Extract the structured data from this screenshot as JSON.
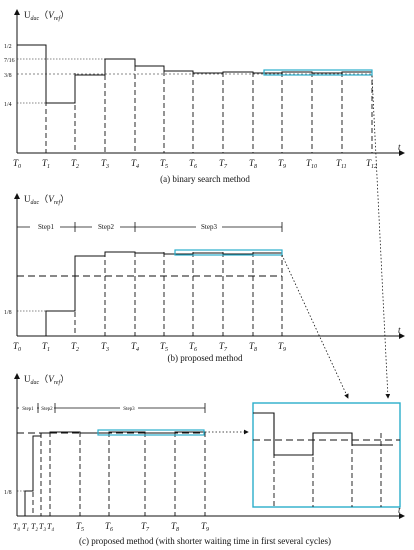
{
  "panel_a": {
    "y_axis_label": "U",
    "y_axis_sub": "dac",
    "y_axis_ref": "V",
    "y_axis_ref_sub": "ref",
    "x_axis_label": "t",
    "y_ticks": [
      "1/2",
      "7/16",
      "3/8",
      "1/4"
    ],
    "t_labels": [
      "T",
      "T",
      "T",
      "T",
      "T",
      "T",
      "T",
      "T",
      "T",
      "T",
      "T",
      "T",
      "T"
    ],
    "t_subs": [
      "0",
      "1",
      "2",
      "3",
      "4",
      "5",
      "6",
      "7",
      "8",
      "9",
      "10",
      "11",
      "12"
    ],
    "caption": "(a) binary search method"
  },
  "panel_b": {
    "y_axis_label": "U",
    "y_axis_sub": "dac",
    "y_axis_ref": "V",
    "y_axis_ref_sub": "ref",
    "x_axis_label": "t",
    "y_ticks": [
      "1/8"
    ],
    "steps": [
      "Step1",
      "Step2",
      "Step3"
    ],
    "t_labels": [
      "T",
      "T",
      "T",
      "T",
      "T",
      "T",
      "T",
      "T",
      "T",
      "T"
    ],
    "t_subs": [
      "0",
      "1",
      "2",
      "3",
      "4",
      "5",
      "6",
      "7",
      "8",
      "9"
    ],
    "caption": "(b) proposed method"
  },
  "panel_c": {
    "y_axis_label": "U",
    "y_axis_sub": "dac",
    "y_axis_ref": "V",
    "y_axis_ref_sub": "ref",
    "x_axis_label": "t",
    "y_ticks": [
      "1/8"
    ],
    "steps": [
      "Step1",
      "Step2",
      "Step3"
    ],
    "t_labels": [
      "T",
      "T",
      "T",
      "T",
      "T",
      "T",
      "T",
      "T",
      "T",
      "T"
    ],
    "t_subs": [
      "0",
      "1",
      "2",
      "3",
      "4",
      "5",
      "6",
      "7",
      "8",
      "9"
    ],
    "caption": "(c) proposed method (with shorter waiting time in first several cycles)"
  },
  "colors": {
    "line": "#111111",
    "highlight": "#2aaecb"
  }
}
